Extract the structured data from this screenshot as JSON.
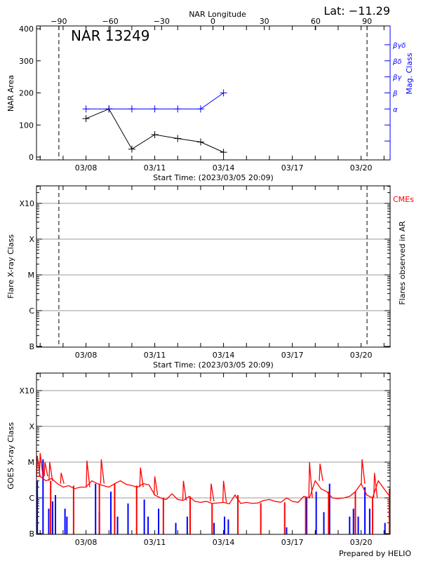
{
  "chart_data": [
    {
      "type": "line",
      "title": "NAR 13249",
      "annotation": "Lat: −11.29",
      "xlabel": "Start Time: (2023/03/05 20:09)",
      "x_start": "2023-03-05T20:09",
      "x_end": "2023-03-21T06:30",
      "x_tick_labels": [
        "03/08",
        "03/11",
        "03/14",
        "03/17",
        "03/20"
      ],
      "top_axis": {
        "label": "NAR Longitude",
        "ticks": [
          "-90",
          "-60",
          "-30",
          "0",
          "30",
          "60",
          "90"
        ],
        "limb_dashed_lines": [
          "-90",
          "90"
        ]
      },
      "ylabel": "NAR Area",
      "ylim": [
        0,
        400
      ],
      "y_tick_labels": [
        "0",
        "100",
        "200",
        "300",
        "400"
      ],
      "y2label": "Mag. Class",
      "y2_tick_labels": [
        "α",
        "β",
        "βγ",
        "βδ",
        "βγδ"
      ],
      "colors": {
        "area": "#000000",
        "mag_class": "#0000ff"
      },
      "series": [
        {
          "key": "area",
          "x": [
            "2023-03-08T00:00",
            "2023-03-09T00:00",
            "2023-03-10T00:00",
            "2023-03-11T00:00",
            "2023-03-12T00:00",
            "2023-03-13T00:00",
            "2023-03-14T00:00"
          ],
          "values": [
            120,
            150,
            25,
            70,
            58,
            47,
            15
          ]
        },
        {
          "key": "mag_class",
          "x": [
            "2023-03-08T00:00",
            "2023-03-09T00:00",
            "2023-03-10T00:00",
            "2023-03-11T00:00",
            "2023-03-12T00:00",
            "2023-03-13T00:00",
            "2023-03-14T00:00"
          ],
          "values": [
            "α",
            "α",
            "α",
            "α",
            "α",
            "α",
            "β"
          ]
        }
      ]
    },
    {
      "type": "scatter",
      "xlabel": "Start Time: (2023/03/05 20:09)",
      "x_tick_labels": [
        "03/08",
        "03/11",
        "03/14",
        "03/17",
        "03/20"
      ],
      "ylabel": "Flare X-ray Class",
      "y_tick_labels": [
        "B",
        "C",
        "M",
        "X",
        "X10"
      ],
      "y2label": "Flares observed in AR",
      "legend": {
        "label": "CMEs",
        "color": "#ff0000"
      },
      "grid": true,
      "series": []
    },
    {
      "type": "line",
      "ylabel": "GOES X-ray Class",
      "x_tick_labels": [
        "03/08",
        "03/11",
        "03/14",
        "03/17",
        "03/20"
      ],
      "y_tick_labels": [
        "B",
        "C",
        "M",
        "X",
        "X10"
      ],
      "yscale": "log",
      "grid": true,
      "colors": {
        "long": "#ff0000",
        "short": "#0000ff"
      },
      "long_channel": {
        "start": "2023-03-06T00:00",
        "step_hours": 6,
        "flux": [
          4e-06,
          3e-06,
          3.5e-06,
          2.5e-06,
          2e-06,
          2.2e-06,
          1.8e-06,
          2e-06,
          2e-06,
          3e-06,
          2.5e-06,
          2.2e-06,
          2e-06,
          2.5e-06,
          3e-06,
          2.4e-06,
          2.2e-06,
          2e-06,
          2.5e-06,
          2.3e-06,
          1.2e-06,
          1e-06,
          9e-07,
          1.3e-06,
          9e-07,
          8.5e-07,
          1.1e-06,
          8e-07,
          7.5e-07,
          8e-07,
          7e-07,
          7.2e-07,
          7.5e-07,
          6.8e-07,
          1.2e-06,
          7e-07,
          7.5e-07,
          7e-07,
          7.2e-07,
          8.5e-07,
          9e-07,
          8e-07,
          7.5e-07,
          1e-06,
          8e-07,
          7.5e-07,
          1.1e-06,
          1e-06,
          3e-06,
          1.8e-06,
          1.5e-06,
          1e-06,
          9.5e-07,
          1e-06,
          1.1e-06,
          1.5e-06,
          2.5e-06,
          1.2e-06,
          1e-06,
          3e-06,
          1.8e-06,
          1.1e-06
        ]
      },
      "long_channel_flares": [
        [
          "2023-03-05T21:00",
          1.5e-05
        ],
        [
          "2023-03-06T00:00",
          1.8e-05
        ],
        [
          "2023-03-06T05:00",
          1e-05
        ],
        [
          "2023-03-06T10:00",
          1e-05
        ],
        [
          "2023-03-06T22:00",
          5e-06
        ],
        [
          "2023-03-08T01:00",
          1.1e-05
        ],
        [
          "2023-03-08T16:00",
          1.2e-05
        ],
        [
          "2023-03-10T09:00",
          7e-06
        ],
        [
          "2023-03-11T00:00",
          4e-06
        ],
        [
          "2023-03-12T06:00",
          3e-06
        ],
        [
          "2023-03-13T11:00",
          2.5e-06
        ],
        [
          "2023-03-14T00:00",
          3e-06
        ],
        [
          "2023-03-17T18:00",
          1e-05
        ],
        [
          "2023-03-18T05:00",
          9e-06
        ],
        [
          "2023-03-20T01:00",
          1.2e-05
        ],
        [
          "2023-03-20T14:00",
          5e-06
        ]
      ],
      "long_channel_dropouts": [
        "2023-03-06T11:00",
        "2023-03-07T11:00",
        "2023-03-08T14:00",
        "2023-03-09T06:00",
        "2023-03-10T05:00",
        "2023-03-11T09:00",
        "2023-03-12T13:00",
        "2023-03-13T12:00",
        "2023-03-14T15:00",
        "2023-03-15T15:00",
        "2023-03-16T16:00",
        "2023-03-17T14:00",
        "2023-03-18T14:00",
        "2023-03-19T18:00",
        "2023-03-20T12:00",
        "2023-03-21T06:00"
      ],
      "short_channel_peaks": [
        [
          "2023-03-05T21:00",
          3e-06
        ],
        [
          "2023-03-06T03:00",
          1.2e-05
        ],
        [
          "2023-03-06T09:00",
          5e-07
        ],
        [
          "2023-03-06T13:00",
          8e-07
        ],
        [
          "2023-03-06T16:00",
          1.2e-06
        ],
        [
          "2023-03-07T02:00",
          5e-07
        ],
        [
          "2023-03-07T04:00",
          3e-07
        ],
        [
          "2023-03-08T10:00",
          2.5e-06
        ],
        [
          "2023-03-08T14:00",
          4e-07
        ],
        [
          "2023-03-09T02:00",
          1.5e-06
        ],
        [
          "2023-03-09T09:00",
          3e-07
        ],
        [
          "2023-03-09T20:00",
          7e-07
        ],
        [
          "2023-03-10T13:00",
          9e-07
        ],
        [
          "2023-03-10T17:00",
          3e-07
        ],
        [
          "2023-03-11T04:00",
          5e-07
        ],
        [
          "2023-03-11T22:00",
          2e-07
        ],
        [
          "2023-03-12T10:00",
          3e-07
        ],
        [
          "2023-03-13T14:00",
          2e-07
        ],
        [
          "2023-03-14T01:00",
          3e-07
        ],
        [
          "2023-03-14T05:00",
          2.5e-07
        ],
        [
          "2023-03-16T18:00",
          1.5e-07
        ],
        [
          "2023-03-17T15:00",
          1e-06
        ],
        [
          "2023-03-18T01:00",
          1.5e-06
        ],
        [
          "2023-03-18T09:00",
          4e-07
        ],
        [
          "2023-03-18T15:00",
          2.5e-06
        ],
        [
          "2023-03-19T12:00",
          3e-07
        ],
        [
          "2023-03-19T16:00",
          5e-07
        ],
        [
          "2023-03-19T21:00",
          3e-07
        ],
        [
          "2023-03-20T04:00",
          2e-06
        ],
        [
          "2023-03-20T09:00",
          5e-07
        ],
        [
          "2023-03-21T01:00",
          2e-07
        ]
      ]
    }
  ],
  "footer": "Prepared by HELIO"
}
